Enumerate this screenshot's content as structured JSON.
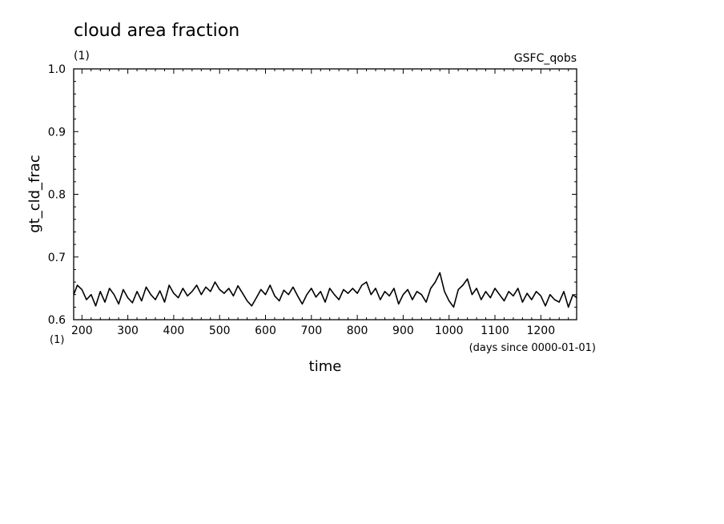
{
  "chart_data": {
    "type": "line",
    "title": "cloud area fraction",
    "title_units": "(1)",
    "source_label": "GSFC_qobs",
    "ylabel": "gt_cld_frac",
    "y_units": "(1)",
    "xlabel": "time",
    "x_units": "(days since 0000-01-01)",
    "xlim": [
      182,
      1278
    ],
    "ylim": [
      0.6,
      1.0
    ],
    "x_ticks": [
      200,
      300,
      400,
      500,
      600,
      700,
      800,
      900,
      1000,
      1100,
      1200
    ],
    "y_ticks": [
      "0.6",
      "0.7",
      "0.8",
      "0.9",
      "1.0"
    ],
    "grid": false,
    "series": [
      {
        "x": [
          182,
          190,
          200,
          210,
          220,
          230,
          240,
          250,
          260,
          270,
          280,
          290,
          300,
          310,
          320,
          330,
          340,
          350,
          360,
          370,
          380,
          390,
          400,
          410,
          420,
          430,
          440,
          450,
          460,
          470,
          480,
          490,
          500,
          510,
          520,
          530,
          540,
          550,
          560,
          570,
          580,
          590,
          600,
          610,
          620,
          630,
          640,
          650,
          660,
          670,
          680,
          690,
          700,
          710,
          720,
          730,
          740,
          750,
          760,
          770,
          780,
          790,
          800,
          810,
          820,
          830,
          840,
          850,
          860,
          870,
          880,
          890,
          900,
          910,
          920,
          930,
          940,
          950,
          960,
          970,
          980,
          990,
          1000,
          1010,
          1020,
          1030,
          1040,
          1050,
          1060,
          1070,
          1080,
          1090,
          1100,
          1110,
          1120,
          1130,
          1140,
          1150,
          1160,
          1170,
          1180,
          1190,
          1200,
          1210,
          1220,
          1230,
          1240,
          1250,
          1260,
          1270,
          1278
        ],
        "y": [
          0.64,
          0.655,
          0.648,
          0.632,
          0.64,
          0.622,
          0.645,
          0.628,
          0.65,
          0.64,
          0.625,
          0.648,
          0.635,
          0.627,
          0.645,
          0.63,
          0.652,
          0.64,
          0.632,
          0.646,
          0.628,
          0.655,
          0.642,
          0.635,
          0.65,
          0.638,
          0.645,
          0.655,
          0.64,
          0.652,
          0.645,
          0.66,
          0.648,
          0.642,
          0.65,
          0.638,
          0.654,
          0.642,
          0.63,
          0.622,
          0.635,
          0.648,
          0.64,
          0.655,
          0.638,
          0.63,
          0.647,
          0.64,
          0.652,
          0.638,
          0.625,
          0.64,
          0.65,
          0.636,
          0.645,
          0.628,
          0.65,
          0.64,
          0.632,
          0.648,
          0.642,
          0.65,
          0.642,
          0.655,
          0.66,
          0.64,
          0.65,
          0.632,
          0.645,
          0.638,
          0.65,
          0.625,
          0.64,
          0.648,
          0.632,
          0.645,
          0.64,
          0.628,
          0.65,
          0.66,
          0.675,
          0.645,
          0.63,
          0.62,
          0.648,
          0.655,
          0.665,
          0.64,
          0.65,
          0.632,
          0.645,
          0.635,
          0.65,
          0.64,
          0.63,
          0.645,
          0.638,
          0.65,
          0.628,
          0.642,
          0.632,
          0.645,
          0.638,
          0.622,
          0.64,
          0.632,
          0.628,
          0.645,
          0.62,
          0.64,
          0.635
        ]
      }
    ]
  }
}
